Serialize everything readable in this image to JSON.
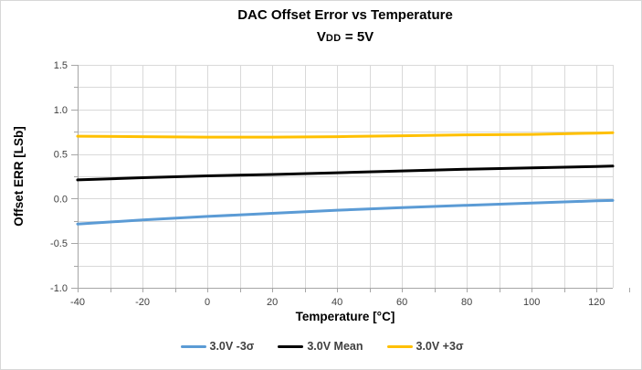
{
  "header": {
    "title": "DAC Offset Error vs Temperature",
    "subtitle_prefix": "V",
    "subtitle_sub": "DD",
    "subtitle_suffix": " = 5V"
  },
  "chart_data": {
    "type": "line",
    "title": "DAC Offset Error vs Temperature",
    "subtitle": "VDD = 5V",
    "xlabel": "Temperature [°C]",
    "ylabel": "Offset ERR [LSb]",
    "xlim": [
      -40,
      125
    ],
    "ylim": [
      -1.0,
      1.5
    ],
    "x_major_ticks": [
      -40,
      -20,
      0,
      20,
      40,
      60,
      80,
      100,
      120
    ],
    "x_minor_step": 10,
    "y_major_ticks": [
      -1.0,
      -0.5,
      0.0,
      0.5,
      1.0,
      1.5
    ],
    "y_minor_step": 0.25,
    "grid": "minor-both-on",
    "legend_position": "bottom-center",
    "x": [
      -40,
      -20,
      0,
      20,
      40,
      60,
      80,
      100,
      120,
      125
    ],
    "series": [
      {
        "name": "3.0V -3σ",
        "color": "#5B9BD5",
        "values": [
          -0.285,
          -0.24,
          -0.2,
          -0.165,
          -0.13,
          -0.1,
          -0.075,
          -0.05,
          -0.025,
          -0.02
        ]
      },
      {
        "name": "3.0V Mean",
        "color": "#000000",
        "values": [
          0.21,
          0.235,
          0.255,
          0.27,
          0.29,
          0.31,
          0.33,
          0.345,
          0.36,
          0.365
        ]
      },
      {
        "name": "3.0V +3σ",
        "color": "#FFC000",
        "values": [
          0.7,
          0.695,
          0.69,
          0.69,
          0.695,
          0.705,
          0.715,
          0.72,
          0.735,
          0.74
        ]
      }
    ],
    "colors": {
      "grid": "#D9D9D9",
      "axis": "#A6A6A6",
      "tick_label": "#404040",
      "legend_text": "#404040"
    }
  }
}
